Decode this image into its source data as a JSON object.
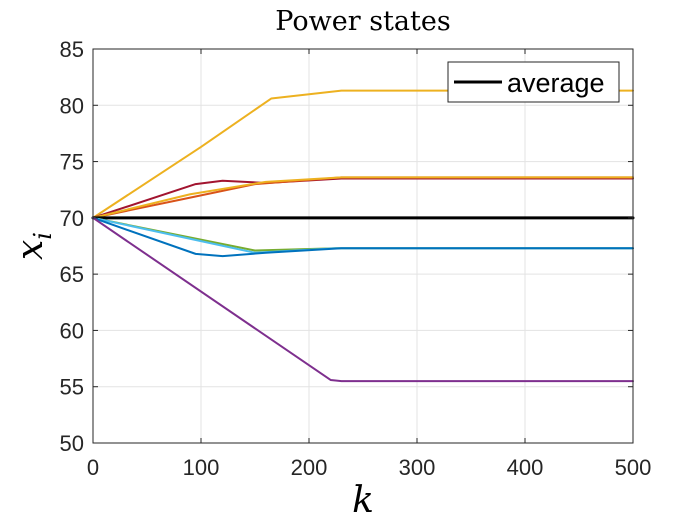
{
  "chart_data": {
    "type": "line",
    "title": "Power states",
    "xlabel": "k",
    "ylabel_main": "x",
    "ylabel_sub": "i",
    "xlim": [
      0,
      500
    ],
    "ylim": [
      50,
      85
    ],
    "xticks": [
      0,
      100,
      200,
      300,
      400,
      500
    ],
    "yticks": [
      50,
      55,
      60,
      65,
      70,
      75,
      80,
      85
    ],
    "grid": true,
    "legend": {
      "position": "top-right",
      "entries": [
        {
          "label": "average",
          "color": "#000000"
        }
      ]
    },
    "series": [
      {
        "name": "state-orange-high",
        "color": "#EDB120",
        "points": [
          [
            0,
            70
          ],
          [
            100,
            76.3
          ],
          [
            165,
            80.6
          ],
          [
            230,
            81.3
          ],
          [
            500,
            81.3
          ]
        ]
      },
      {
        "name": "state-darkred",
        "color": "#A2142F",
        "points": [
          [
            0,
            70
          ],
          [
            95,
            73
          ],
          [
            120,
            73.3
          ],
          [
            160,
            73.1
          ],
          [
            230,
            73.5
          ],
          [
            500,
            73.5
          ]
        ]
      },
      {
        "name": "state-orange-mid",
        "color": "#D95319",
        "points": [
          [
            0,
            70
          ],
          [
            80,
            71.6
          ],
          [
            150,
            73
          ],
          [
            230,
            73.6
          ],
          [
            500,
            73.6
          ]
        ]
      },
      {
        "name": "state-yellow-mid",
        "color": "#EDB120",
        "points": [
          [
            0,
            70
          ],
          [
            90,
            72.1
          ],
          [
            160,
            73.2
          ],
          [
            230,
            73.6
          ],
          [
            500,
            73.6
          ]
        ]
      },
      {
        "name": "average",
        "color": "#000000",
        "points": [
          [
            0,
            70
          ],
          [
            500,
            70
          ]
        ]
      },
      {
        "name": "state-green",
        "color": "#77AC30",
        "points": [
          [
            0,
            70
          ],
          [
            150,
            67.1
          ],
          [
            225,
            67.3
          ],
          [
            500,
            67.3
          ]
        ]
      },
      {
        "name": "state-cyan",
        "color": "#4DBEEE",
        "points": [
          [
            0,
            70
          ],
          [
            150,
            66.9
          ],
          [
            225,
            67.3
          ],
          [
            500,
            67.3
          ]
        ]
      },
      {
        "name": "state-blue",
        "color": "#0072BD",
        "points": [
          [
            0,
            70
          ],
          [
            95,
            66.8
          ],
          [
            120,
            66.6
          ],
          [
            160,
            66.9
          ],
          [
            230,
            67.3
          ],
          [
            500,
            67.3
          ]
        ]
      },
      {
        "name": "state-purple",
        "color": "#7E2F8E",
        "points": [
          [
            0,
            70
          ],
          [
            220,
            55.6
          ],
          [
            230,
            55.5
          ],
          [
            500,
            55.5
          ]
        ]
      }
    ]
  }
}
